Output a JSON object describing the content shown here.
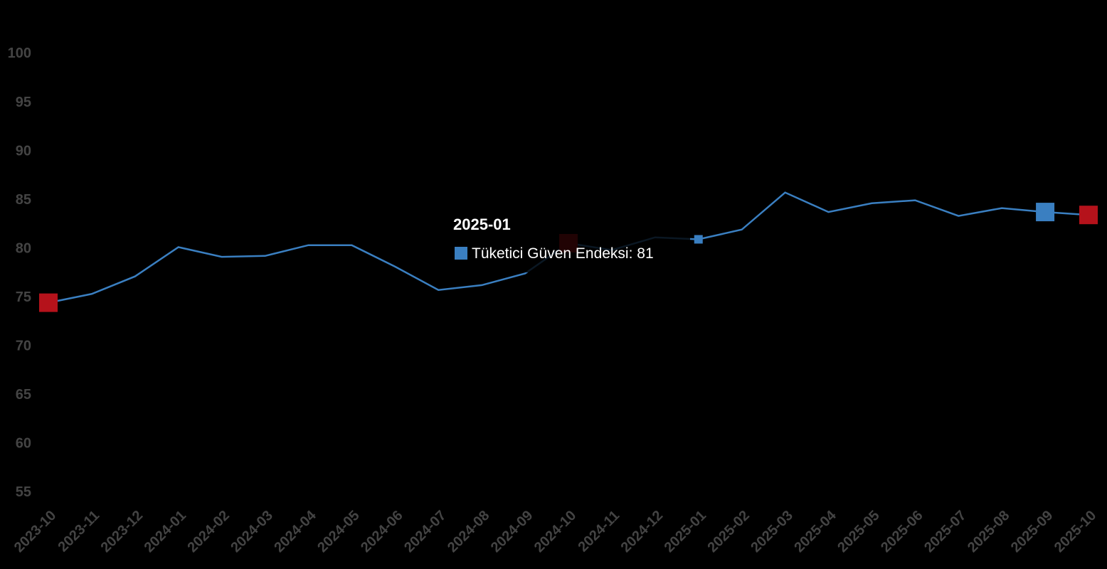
{
  "chart_data": {
    "type": "line",
    "categories": [
      "2023-10",
      "2023-11",
      "2023-12",
      "2024-01",
      "2024-02",
      "2024-03",
      "2024-04",
      "2024-05",
      "2024-06",
      "2024-07",
      "2024-08",
      "2024-09",
      "2024-10",
      "2024-11",
      "2024-12",
      "2025-01",
      "2025-02",
      "2025-03",
      "2025-04",
      "2025-05",
      "2025-06",
      "2025-07",
      "2025-08",
      "2025-09",
      "2025-10"
    ],
    "series": [
      {
        "name": "Tüketici Güven Endeksi",
        "color": "#3a7fc1",
        "values": [
          74.5,
          75.4,
          77.2,
          80.2,
          79.2,
          79.3,
          80.4,
          80.4,
          78.2,
          75.8,
          76.3,
          77.5,
          80.6,
          79.9,
          81.2,
          81,
          82.0,
          85.8,
          83.8,
          84.7,
          85.0,
          83.4,
          84.2,
          83.8,
          83.5
        ]
      }
    ],
    "ylim": [
      52.7,
      101.5
    ],
    "yticks": [
      55,
      60,
      65,
      70,
      75,
      80,
      85,
      90,
      95,
      100
    ],
    "grid": false,
    "markers": [
      {
        "index": 0,
        "color": "#b5121b"
      },
      {
        "index": 12,
        "color": "#b5121b"
      },
      {
        "index": 23,
        "color": "#3a7fc1"
      },
      {
        "index": 24,
        "color": "#b5121b"
      }
    ],
    "tooltip_index": 15
  }
}
